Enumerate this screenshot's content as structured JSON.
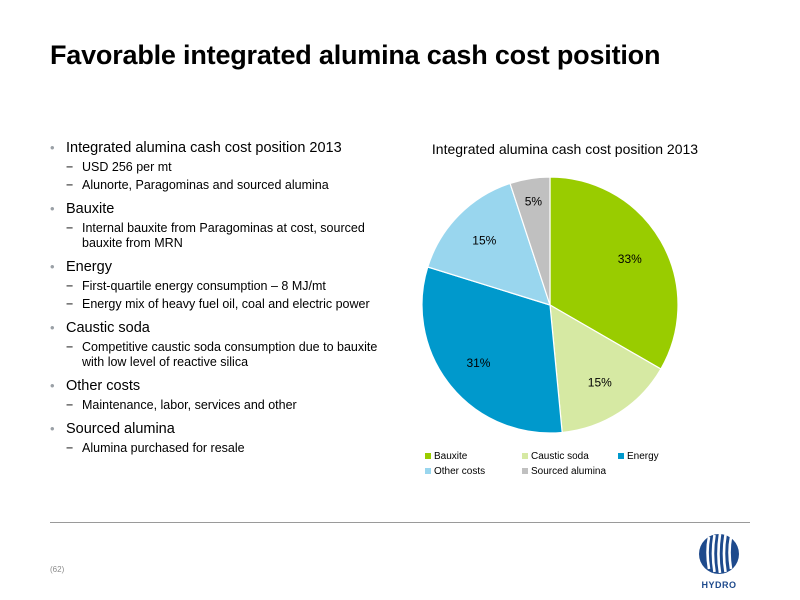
{
  "title": "Favorable integrated alumina cash cost position",
  "bullets": [
    {
      "label": "Integrated alumina cash cost position 2013",
      "subs": [
        "USD 256 per mt",
        "Alunorte, Paragominas and sourced alumina"
      ]
    },
    {
      "label": "Bauxite",
      "subs": [
        "Internal bauxite from Paragominas at cost, sourced bauxite from MRN"
      ]
    },
    {
      "label": "Energy",
      "subs": [
        "First-quartile energy consumption – 8 MJ/mt",
        "Energy mix of heavy fuel oil, coal and electric power"
      ]
    },
    {
      "label": "Caustic soda",
      "subs": [
        "Competitive caustic soda consumption due to bauxite with low level of reactive silica"
      ]
    },
    {
      "label": "Other costs",
      "subs": [
        "Maintenance, labor, services and other"
      ]
    },
    {
      "label": "Sourced alumina",
      "subs": [
        "Alumina purchased for resale"
      ]
    }
  ],
  "chart_data": {
    "type": "pie",
    "title": "Integrated alumina cash cost position 2013",
    "categories": [
      "Bauxite",
      "Caustic soda",
      "Energy",
      "Other costs",
      "Sourced alumina"
    ],
    "values": [
      33,
      15,
      31,
      15,
      5
    ],
    "labels": [
      "33%",
      "15%",
      "31%",
      "15%",
      "5%"
    ],
    "colors": [
      "#99cc00",
      "#d6e9a3",
      "#0099cc",
      "#99d6ee",
      "#c0c0c0"
    ],
    "legend": "bottom"
  },
  "footer": {
    "page": "(62)",
    "logo_text": "HYDRO"
  }
}
